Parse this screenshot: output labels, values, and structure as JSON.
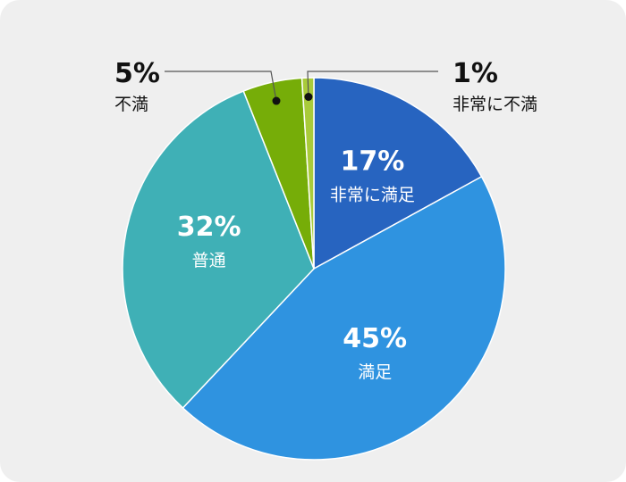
{
  "chart_data": {
    "type": "pie",
    "start_angle": "12 o'clock",
    "direction": "clockwise",
    "slices": [
      {
        "label": "非常に満足",
        "value": 17,
        "value_label": "17%",
        "color": "#2764c0",
        "label_position": "inside"
      },
      {
        "label": "満足",
        "value": 45,
        "value_label": "45%",
        "color": "#2f93e0",
        "label_position": "inside"
      },
      {
        "label": "普通",
        "value": 32,
        "value_label": "32%",
        "color": "#3fb0b6",
        "label_position": "inside"
      },
      {
        "label": "不満",
        "value": 5,
        "value_label": "5%",
        "color": "#76ad08",
        "label_position": "outside-left"
      },
      {
        "label": "非常に不満",
        "value": 1,
        "value_label": "1%",
        "color": "#a9cb3a",
        "label_position": "outside-right"
      }
    ],
    "background_color": "#efefef",
    "separator_color": "#ffffff"
  }
}
